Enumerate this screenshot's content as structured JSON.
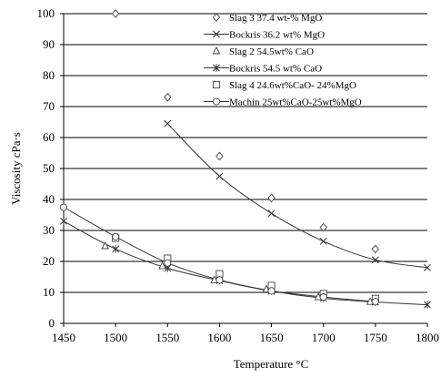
{
  "chart_data": {
    "type": "scatter",
    "title": "",
    "xlabel": "Temperature °C",
    "ylabel": "Viscosity  cPa·s",
    "xlim": [
      1450,
      1800
    ],
    "ylim": [
      0,
      100
    ],
    "x_ticks": [
      1450,
      1500,
      1550,
      1600,
      1650,
      1700,
      1750,
      1800
    ],
    "y_ticks": [
      0,
      10,
      20,
      30,
      40,
      50,
      60,
      70,
      80,
      90,
      100
    ],
    "grid": "horizontal",
    "legend_position": "top-right",
    "series": [
      {
        "name": "Slag 3 37.4 wt-% MgO",
        "marker": "diamond",
        "line": false,
        "x": [
          1500,
          1550,
          1600,
          1650,
          1700,
          1750
        ],
        "y": [
          100,
          73,
          54,
          40.5,
          31,
          24
        ]
      },
      {
        "name": "Bockris 36.2 wt% MgO",
        "marker": "x",
        "line": true,
        "x": [
          1550,
          1600,
          1650,
          1700,
          1750,
          1800
        ],
        "y": [
          64.5,
          47.5,
          35.5,
          26.5,
          20.5,
          18
        ]
      },
      {
        "name": "Slag 2 54.5wt% CaO",
        "marker": "triangle",
        "line": false,
        "x": [
          1490,
          1545,
          1595,
          1645,
          1695,
          1745
        ],
        "y": [
          25,
          18.5,
          14,
          11,
          8.5,
          7
        ]
      },
      {
        "name": "Bockris 54.5 wt% CaO",
        "marker": "asterisk",
        "line": true,
        "x": [
          1450,
          1500,
          1550,
          1600,
          1650,
          1700,
          1750,
          1800
        ],
        "y": [
          33,
          24,
          17.8,
          13.8,
          10.4,
          8.1,
          6.9,
          6
        ]
      },
      {
        "name": "Slag 4 24.6wt%CaO- 24%MgO",
        "marker": "square",
        "line": false,
        "x": [
          1500,
          1550,
          1600,
          1650,
          1700,
          1750
        ],
        "y": [
          27.5,
          21,
          16,
          12.2,
          9.6,
          8
        ]
      },
      {
        "name": "Machin 25wt%CaO-25wt%MgO",
        "marker": "circle",
        "line": true,
        "x": [
          1450,
          1500,
          1550,
          1600,
          1650,
          1700,
          1750
        ],
        "y": [
          37.5,
          28,
          19.5,
          14,
          10.5,
          8.5,
          7
        ]
      }
    ]
  }
}
